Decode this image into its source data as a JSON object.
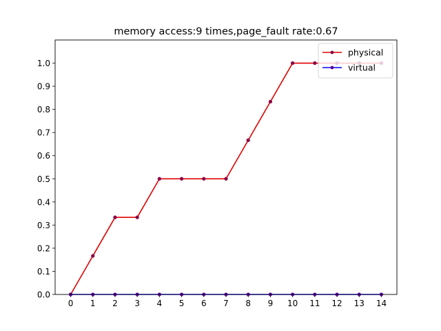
{
  "chart_data": {
    "type": "line",
    "title": "memory access:9 times,page_fault rate:0.67",
    "xlabel": "",
    "ylabel": "",
    "x": [
      0,
      1,
      2,
      3,
      4,
      5,
      6,
      7,
      8,
      9,
      10,
      11,
      12,
      13,
      14
    ],
    "xlim": [
      -0.7,
      14.7
    ],
    "ylim": [
      0,
      1.1
    ],
    "xticks": [
      "0",
      "1",
      "2",
      "3",
      "4",
      "5",
      "6",
      "7",
      "8",
      "9",
      "10",
      "11",
      "12",
      "13",
      "14"
    ],
    "yticks": [
      "0.0",
      "0.1",
      "0.2",
      "0.3",
      "0.4",
      "0.5",
      "0.6",
      "0.7",
      "0.8",
      "0.9",
      "1.0"
    ],
    "grid": false,
    "legend_position": "top-right",
    "series": [
      {
        "name": "physical",
        "color": "#e00000",
        "marker_color": "#8b0046",
        "values": [
          0,
          0.1667,
          0.3333,
          0.3333,
          0.5,
          0.5,
          0.5,
          0.5,
          0.6667,
          0.8333,
          1.0,
          1.0,
          1.0,
          1.0,
          1.0
        ]
      },
      {
        "name": "virtual",
        "color": "#0000ff",
        "marker_color": "#5a0099",
        "values": [
          0,
          0,
          0,
          0,
          0,
          0,
          0,
          0,
          0,
          0,
          0,
          0,
          0,
          0,
          0
        ]
      }
    ]
  }
}
